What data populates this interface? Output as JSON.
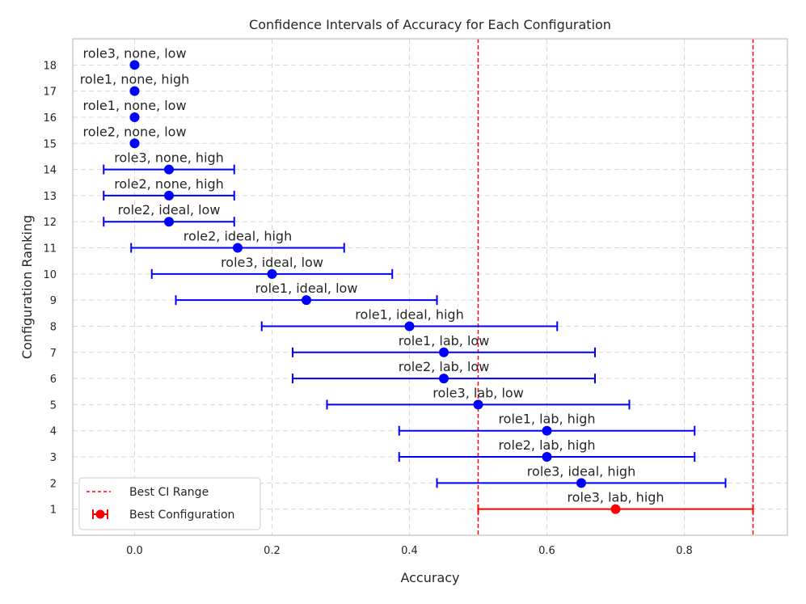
{
  "chart_data": {
    "type": "scatter",
    "title": "Confidence Intervals of Accuracy for Each Configuration",
    "xlabel": "Accuracy",
    "ylabel": "Configuration Ranking",
    "xlim": [
      -0.09,
      0.95
    ],
    "ylim": [
      0,
      19
    ],
    "xticks": [
      0.0,
      0.2,
      0.4,
      0.6,
      0.8
    ],
    "xtick_labels": [
      "0.0",
      "0.2",
      "0.4",
      "0.6",
      "0.8"
    ],
    "yticks": [
      1,
      2,
      3,
      4,
      5,
      6,
      7,
      8,
      9,
      10,
      11,
      12,
      13,
      14,
      15,
      16,
      17,
      18
    ],
    "ytick_labels": [
      "1",
      "2",
      "3",
      "4",
      "5",
      "6",
      "7",
      "8",
      "9",
      "10",
      "11",
      "12",
      "13",
      "14",
      "15",
      "16",
      "17",
      "18"
    ],
    "grid": true,
    "colors": {
      "normal": "#0000ff",
      "best": "#ff0000",
      "ci_line": "#ff0000",
      "grid": "#d8d8d8",
      "frame": "#cccccc"
    },
    "best_ci_range": [
      0.5,
      0.9
    ],
    "points": [
      {
        "rank": 1,
        "label": "role3, lab, high",
        "accuracy": 0.7,
        "ci_low": 0.5,
        "ci_high": 0.9,
        "best": true
      },
      {
        "rank": 2,
        "label": "role3, ideal, high",
        "accuracy": 0.65,
        "ci_low": 0.44,
        "ci_high": 0.86,
        "best": false
      },
      {
        "rank": 3,
        "label": "role2, lab, high",
        "accuracy": 0.6,
        "ci_low": 0.385,
        "ci_high": 0.815,
        "best": false
      },
      {
        "rank": 4,
        "label": "role1, lab, high",
        "accuracy": 0.6,
        "ci_low": 0.385,
        "ci_high": 0.815,
        "best": false
      },
      {
        "rank": 5,
        "label": "role3, lab, low",
        "accuracy": 0.5,
        "ci_low": 0.28,
        "ci_high": 0.72,
        "best": false
      },
      {
        "rank": 6,
        "label": "role2, lab, low",
        "accuracy": 0.45,
        "ci_low": 0.23,
        "ci_high": 0.67,
        "best": false
      },
      {
        "rank": 7,
        "label": "role1, lab, low",
        "accuracy": 0.45,
        "ci_low": 0.23,
        "ci_high": 0.67,
        "best": false
      },
      {
        "rank": 8,
        "label": "role1, ideal, high",
        "accuracy": 0.4,
        "ci_low": 0.185,
        "ci_high": 0.615,
        "best": false
      },
      {
        "rank": 9,
        "label": "role1, ideal, low",
        "accuracy": 0.25,
        "ci_low": 0.06,
        "ci_high": 0.44,
        "best": false
      },
      {
        "rank": 10,
        "label": "role3, ideal, low",
        "accuracy": 0.2,
        "ci_low": 0.025,
        "ci_high": 0.375,
        "best": false
      },
      {
        "rank": 11,
        "label": "role2, ideal, high",
        "accuracy": 0.15,
        "ci_low": -0.005,
        "ci_high": 0.305,
        "best": false
      },
      {
        "rank": 12,
        "label": "role2, ideal, low",
        "accuracy": 0.05,
        "ci_low": -0.045,
        "ci_high": 0.145,
        "best": false
      },
      {
        "rank": 13,
        "label": "role2, none, high",
        "accuracy": 0.05,
        "ci_low": -0.045,
        "ci_high": 0.145,
        "best": false
      },
      {
        "rank": 14,
        "label": "role3, none, high",
        "accuracy": 0.05,
        "ci_low": -0.045,
        "ci_high": 0.145,
        "best": false
      },
      {
        "rank": 15,
        "label": "role2, none, low",
        "accuracy": 0.0,
        "ci_low": 0.0,
        "ci_high": 0.0,
        "best": false
      },
      {
        "rank": 16,
        "label": "role1, none, low",
        "accuracy": 0.0,
        "ci_low": 0.0,
        "ci_high": 0.0,
        "best": false
      },
      {
        "rank": 17,
        "label": "role1, none, high",
        "accuracy": 0.0,
        "ci_low": 0.0,
        "ci_high": 0.0,
        "best": false
      },
      {
        "rank": 18,
        "label": "role3, none, low",
        "accuracy": 0.0,
        "ci_low": 0.0,
        "ci_high": 0.0,
        "best": false
      }
    ],
    "legend": {
      "position": "lower-left",
      "entries": [
        {
          "label": "Best CI Range",
          "style": "dashed-line"
        },
        {
          "label": "Best Configuration",
          "style": "errorbar-marker"
        }
      ]
    }
  }
}
